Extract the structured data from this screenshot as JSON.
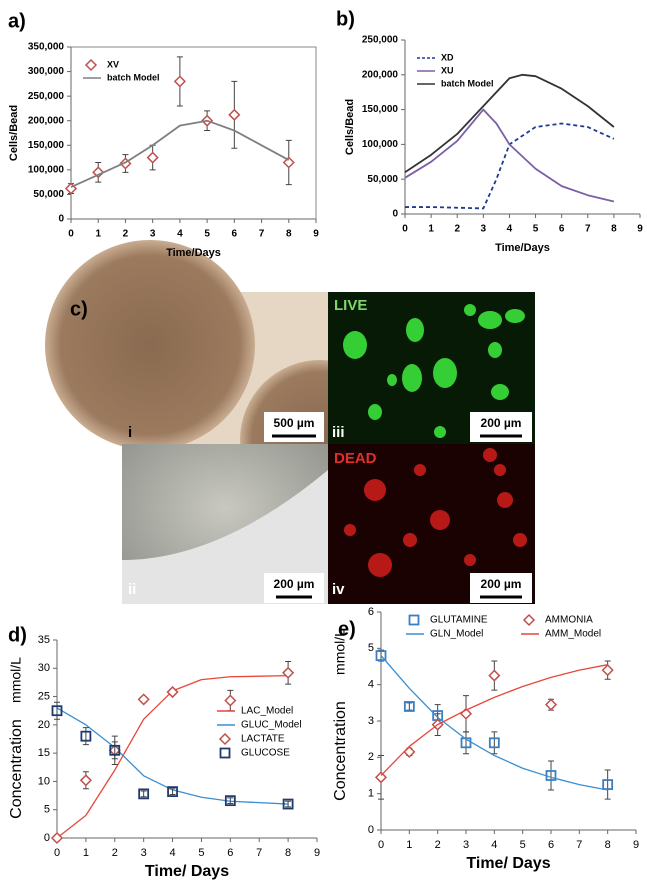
{
  "chart_data": [
    {
      "type": "line",
      "label": "a)",
      "xlabel": "Time/Days",
      "ylabel": "Cells/Bead",
      "frame": true,
      "legend": "upper left",
      "legend_columns": 1,
      "xlim": [
        0,
        9
      ],
      "xticks": [
        0,
        1,
        2,
        3,
        4,
        5,
        6,
        7,
        8,
        9
      ],
      "ylim": [
        0,
        350000
      ],
      "yticks": [
        0,
        {
          "value": 50000,
          "label": "50,000"
        },
        {
          "value": 100000,
          "label": "100,000"
        },
        {
          "value": 150000,
          "label": "150,000"
        },
        {
          "value": 200000,
          "label": "200,000"
        },
        {
          "value": 250000,
          "label": "250,000"
        },
        {
          "value": 300000,
          "label": "300,000"
        },
        {
          "value": 350000,
          "label": "350,000"
        }
      ],
      "series": [
        {
          "name": "XV",
          "color": "#c0504d",
          "marker": "diamond",
          "x": [
            0,
            1,
            2,
            3,
            4,
            5,
            6,
            8
          ],
          "values": [
            62000,
            95000,
            113000,
            125000,
            280000,
            200000,
            212000,
            115000
          ],
          "errors": [
            10000,
            20000,
            18000,
            25000,
            50000,
            20000,
            68000,
            45000
          ]
        },
        {
          "name": "batch Model",
          "color": "#7f7f7f",
          "x": [
            0,
            1,
            2,
            3,
            4,
            5,
            6,
            7,
            8
          ],
          "values": [
            65000,
            90000,
            115000,
            150000,
            190000,
            200000,
            180000,
            150000,
            120000
          ]
        }
      ]
    },
    {
      "type": "line",
      "label": "b)",
      "xlabel": "Time/Days",
      "ylabel": "Cells/Bead",
      "frame": false,
      "legend": "upper left",
      "legend_columns": 1,
      "xlim": [
        0,
        9
      ],
      "xticks": [
        0,
        1,
        2,
        3,
        4,
        5,
        6,
        7,
        8,
        9
      ],
      "ylim": [
        0,
        250000
      ],
      "yticks": [
        0,
        {
          "value": 50000,
          "label": "50,000"
        },
        {
          "value": 100000,
          "label": "100,000"
        },
        {
          "value": 150000,
          "label": "150,000"
        },
        {
          "value": 200000,
          "label": "200,000"
        },
        {
          "value": 250000,
          "label": "250,000"
        }
      ],
      "series": [
        {
          "name": "XD",
          "color": "#1f3a93",
          "dash": true,
          "x": [
            0,
            1,
            2,
            3,
            3.5,
            4,
            5,
            6,
            7,
            8
          ],
          "values": [
            10000,
            10000,
            9000,
            8000,
            50000,
            100000,
            125000,
            130000,
            125000,
            108000
          ]
        },
        {
          "name": "XU",
          "color": "#7b5ea7",
          "x": [
            0,
            1,
            2,
            3,
            3.5,
            4,
            5,
            6,
            7,
            8
          ],
          "values": [
            52000,
            75000,
            105000,
            150000,
            130000,
            100000,
            65000,
            40000,
            27000,
            18000
          ]
        },
        {
          "name": "batch Model",
          "color": "#333333",
          "x": [
            0,
            1,
            2,
            3,
            4,
            4.5,
            5,
            6,
            7,
            8
          ],
          "values": [
            60000,
            85000,
            115000,
            155000,
            195000,
            200000,
            198000,
            180000,
            155000,
            125000
          ]
        }
      ]
    },
    {
      "type": "line",
      "label": "d)",
      "xlabel": "Time/ Days",
      "ylabel": "Concentration",
      "yunit": "mmol/L",
      "frame": false,
      "legend": "center right",
      "legend_columns": 1,
      "xlim": [
        0,
        9
      ],
      "xticks": [
        0,
        1,
        2,
        3,
        4,
        5,
        6,
        7,
        8,
        9
      ],
      "ylim": [
        0,
        35
      ],
      "yticks": [
        0,
        5,
        10,
        15,
        20,
        25,
        30,
        35
      ],
      "series": [
        {
          "name": "LAC_Model",
          "color": "#e8473a",
          "x": [
            0,
            1,
            2,
            3,
            4,
            5,
            6,
            8
          ],
          "values": [
            0,
            4,
            12,
            21,
            26,
            28,
            28.5,
            28.7
          ]
        },
        {
          "name": "GLUC_Model",
          "color": "#3a8fd1",
          "x": [
            0,
            1,
            2,
            3,
            4,
            5,
            6,
            8
          ],
          "values": [
            23,
            20,
            16,
            11,
            8.5,
            7.2,
            6.5,
            6
          ]
        },
        {
          "name": "LACTATE",
          "color": "#c0504d",
          "marker": "diamond",
          "x": [
            0,
            1,
            2,
            3,
            4,
            6,
            8
          ],
          "values": [
            0,
            10.2,
            15.5,
            24.5,
            25.8,
            24.3,
            29.2
          ],
          "errors": [
            0.5,
            1.5,
            1.5,
            0.5,
            0.5,
            1.8,
            2
          ]
        },
        {
          "name": "GLUCOSE",
          "color": "#1f3a6e",
          "marker": "square",
          "x": [
            0,
            1,
            2,
            3,
            4,
            6,
            8
          ],
          "values": [
            22.5,
            18,
            15.5,
            7.8,
            8.2,
            6.6,
            6
          ],
          "errors": [
            1.5,
            1.5,
            2.5,
            0.5,
            0.5,
            0.5,
            0.5
          ]
        }
      ]
    },
    {
      "type": "line",
      "label": "e)",
      "xlabel": "Time/ Days",
      "ylabel": "Concentration",
      "yunit": "mmol/L",
      "frame": false,
      "legend": "upper right",
      "legend_columns": 2,
      "xlim": [
        0,
        9
      ],
      "xticks": [
        0,
        1,
        2,
        3,
        4,
        5,
        6,
        7,
        8,
        9
      ],
      "ylim": [
        0,
        6
      ],
      "yticks": [
        0,
        1,
        2,
        3,
        4,
        5,
        6
      ],
      "series": [
        {
          "name": "GLUTAMINE",
          "color": "#3a7fc1",
          "marker": "square",
          "x": [
            0,
            1,
            2,
            3,
            4,
            6,
            8
          ],
          "values": [
            4.8,
            3.4,
            3.15,
            2.4,
            2.4,
            1.5,
            1.25
          ],
          "errors": [
            0.15,
            0.1,
            0.3,
            0.3,
            0.3,
            0.4,
            0.4
          ]
        },
        {
          "name": "AMMONIA",
          "color": "#c0504d",
          "marker": "diamond",
          "x": [
            0,
            1,
            2,
            3,
            4,
            6,
            8
          ],
          "values": [
            1.45,
            2.15,
            2.9,
            3.2,
            4.25,
            3.45,
            4.4
          ],
          "errors": [
            0.6,
            0.1,
            0.3,
            0.5,
            0.4,
            0.15,
            0.25
          ]
        },
        {
          "name": "GLN_Model",
          "color": "#3a8fd1",
          "x": [
            0,
            1,
            2,
            3,
            4,
            5,
            6,
            7,
            8
          ],
          "values": [
            4.8,
            3.9,
            3.1,
            2.5,
            2.05,
            1.7,
            1.45,
            1.25,
            1.1
          ]
        },
        {
          "name": "AMM_Model",
          "color": "#e8473a",
          "x": [
            0,
            1,
            2,
            3,
            4,
            5,
            6,
            7,
            8
          ],
          "values": [
            1.5,
            2.3,
            2.9,
            3.3,
            3.65,
            3.95,
            4.2,
            4.4,
            4.55
          ]
        }
      ]
    }
  ],
  "micrographs": {
    "label": "c)",
    "live": "LIVE",
    "dead": "DEAD",
    "panels": [
      "i",
      "ii",
      "iii",
      "iv"
    ],
    "scale_bars": [
      "500 µm",
      "200 µm",
      "200 µm",
      "200 µm"
    ]
  }
}
